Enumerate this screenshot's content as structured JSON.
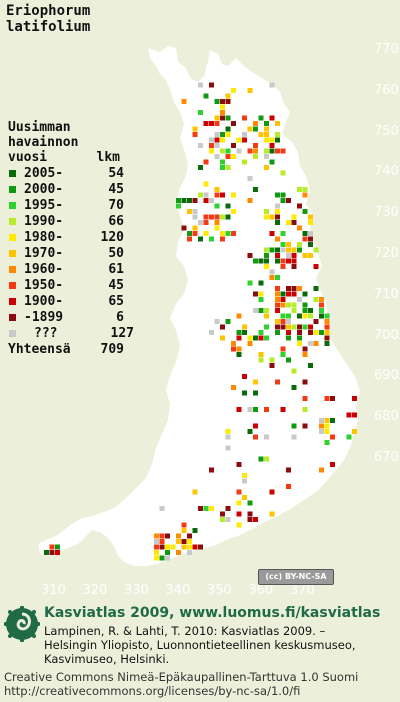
{
  "title": {
    "line1": "Eriophorum",
    "line2": "latifolium"
  },
  "legend": {
    "heading": [
      "Uusimman",
      "havainnon"
    ],
    "col_label": "vuosi",
    "col_count": "lkm",
    "entries": [
      {
        "label": "2005-",
        "count": "54",
        "color": "#0a6b0a"
      },
      {
        "label": "2000-",
        "count": "45",
        "color": "#119a11"
      },
      {
        "label": "1995-",
        "count": "70",
        "color": "#2fd12f"
      },
      {
        "label": "1990-",
        "count": "66",
        "color": "#b6ec2a"
      },
      {
        "label": "1980-",
        "count": "120",
        "color": "#ffea00"
      },
      {
        "label": "1970-",
        "count": "50",
        "color": "#ffc400"
      },
      {
        "label": "1960-",
        "count": "61",
        "color": "#ff8a00"
      },
      {
        "label": "1950-",
        "count": "45",
        "color": "#f23b13"
      },
      {
        "label": "1900-",
        "count": "65",
        "color": "#cc0000"
      },
      {
        "label": "-1899",
        "count": "6",
        "color": "#8a0c0c"
      },
      {
        "label": "???",
        "count": "127",
        "color": "#c9c9c9"
      }
    ],
    "total_label": "Yhteensä",
    "total_count": "709"
  },
  "axes": {
    "y_ticks": [
      "770",
      "760",
      "750",
      "740",
      "730",
      "720",
      "710",
      "700",
      "690",
      "680",
      "670"
    ],
    "x_ticks": [
      "310",
      "320",
      "330",
      "340",
      "350",
      "360",
      "370"
    ]
  },
  "license_badge": "(cc) BY-NC-SA",
  "footer": {
    "title": "Kasviatlas 2009, www.luomus.fi/kasviatlas",
    "citation": [
      "Lampinen, R. & Lahti, T. 2010: Kasviatlas 2009. –",
      "Helsingin Yliopisto, Luonnontieteellinen keskusmuseo,",
      "Kasvimuseo, Helsinki."
    ],
    "license": [
      "Creative Commons Nimeä-Epäkaupallinen-Tarttuva 1.0 Suomi",
      "http://creativecommons.org/licenses/by-nc-sa/1.0/fi"
    ]
  },
  "colors": {
    "background": "#ecf0da",
    "land": "#ffffff",
    "grid_label": "#ffffff",
    "footer_title": "#1f6b45"
  }
}
